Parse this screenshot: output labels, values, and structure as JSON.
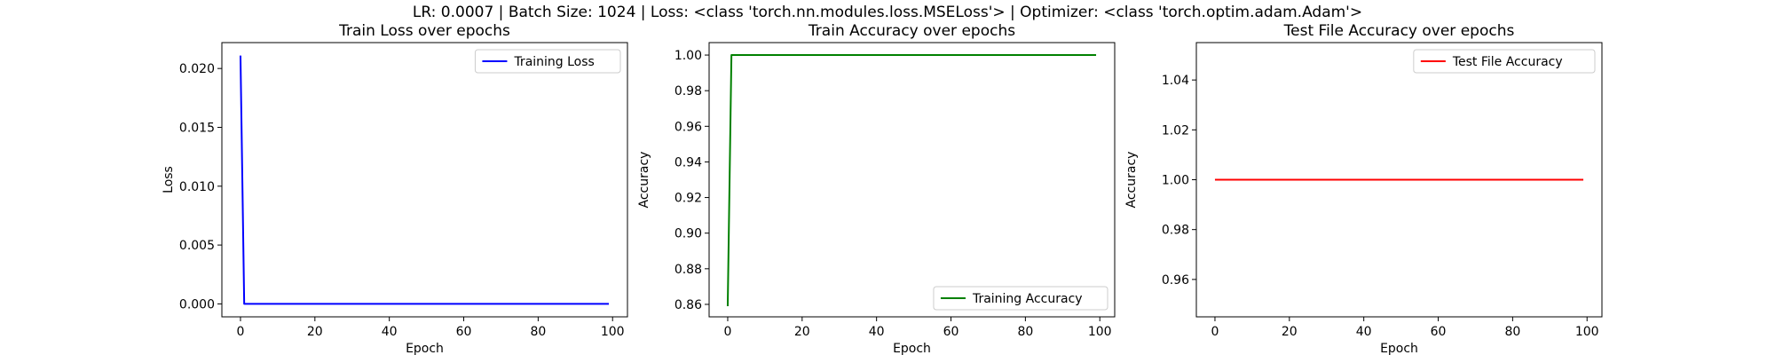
{
  "figure": {
    "suptitle": "LR: 0.0007 | Batch Size: 1024 | Loss: <class 'torch.nn.modules.loss.MSELoss'> | Optimizer: <class 'torch.optim.adam.Adam'>"
  },
  "chart_data": [
    {
      "type": "line",
      "title": "Train Loss over epochs",
      "xlabel": "Epoch",
      "ylabel": "Loss",
      "xlim": [
        -5,
        104
      ],
      "ylim": [
        -0.0011,
        0.0222
      ],
      "xticks": [
        0,
        20,
        40,
        60,
        80,
        100
      ],
      "xtick_labels": [
        "0",
        "20",
        "40",
        "60",
        "80",
        "100"
      ],
      "yticks": [
        0.0,
        0.005,
        0.01,
        0.015,
        0.02
      ],
      "ytick_labels": [
        "0.000",
        "0.005",
        "0.010",
        "0.015",
        "0.020"
      ],
      "legend": "top-right",
      "grid": false,
      "series": [
        {
          "name": "Training Loss",
          "color": "#0000ff",
          "x": [
            0,
            1,
            99
          ],
          "y": [
            0.0211,
            0.0,
            0.0
          ]
        }
      ]
    },
    {
      "type": "line",
      "title": "Train Accuracy over epochs",
      "xlabel": "Epoch",
      "ylabel": "Accuracy",
      "xlim": [
        -5,
        104
      ],
      "ylim": [
        0.853,
        1.007
      ],
      "xticks": [
        0,
        20,
        40,
        60,
        80,
        100
      ],
      "xtick_labels": [
        "0",
        "20",
        "40",
        "60",
        "80",
        "100"
      ],
      "yticks": [
        0.86,
        0.88,
        0.9,
        0.92,
        0.94,
        0.96,
        0.98,
        1.0
      ],
      "ytick_labels": [
        "0.86",
        "0.88",
        "0.90",
        "0.92",
        "0.94",
        "0.96",
        "0.98",
        "1.00"
      ],
      "legend": "bottom-right",
      "grid": false,
      "series": [
        {
          "name": "Training Accuracy",
          "color": "#008000",
          "x": [
            0,
            1,
            99
          ],
          "y": [
            0.859,
            1.0,
            1.0
          ]
        }
      ]
    },
    {
      "type": "line",
      "title": "Test File Accuracy over epochs",
      "xlabel": "Epoch",
      "ylabel": "Accuracy",
      "xlim": [
        -5,
        104
      ],
      "ylim": [
        0.945,
        1.055
      ],
      "xticks": [
        0,
        20,
        40,
        60,
        80,
        100
      ],
      "xtick_labels": [
        "0",
        "20",
        "40",
        "60",
        "80",
        "100"
      ],
      "yticks": [
        0.96,
        0.98,
        1.0,
        1.02,
        1.04
      ],
      "ytick_labels": [
        "0.96",
        "0.98",
        "1.00",
        "1.02",
        "1.04"
      ],
      "legend": "top-right",
      "grid": false,
      "series": [
        {
          "name": "Test File Accuracy",
          "color": "#ff0000",
          "x": [
            0,
            99
          ],
          "y": [
            1.0,
            1.0
          ]
        }
      ]
    }
  ]
}
